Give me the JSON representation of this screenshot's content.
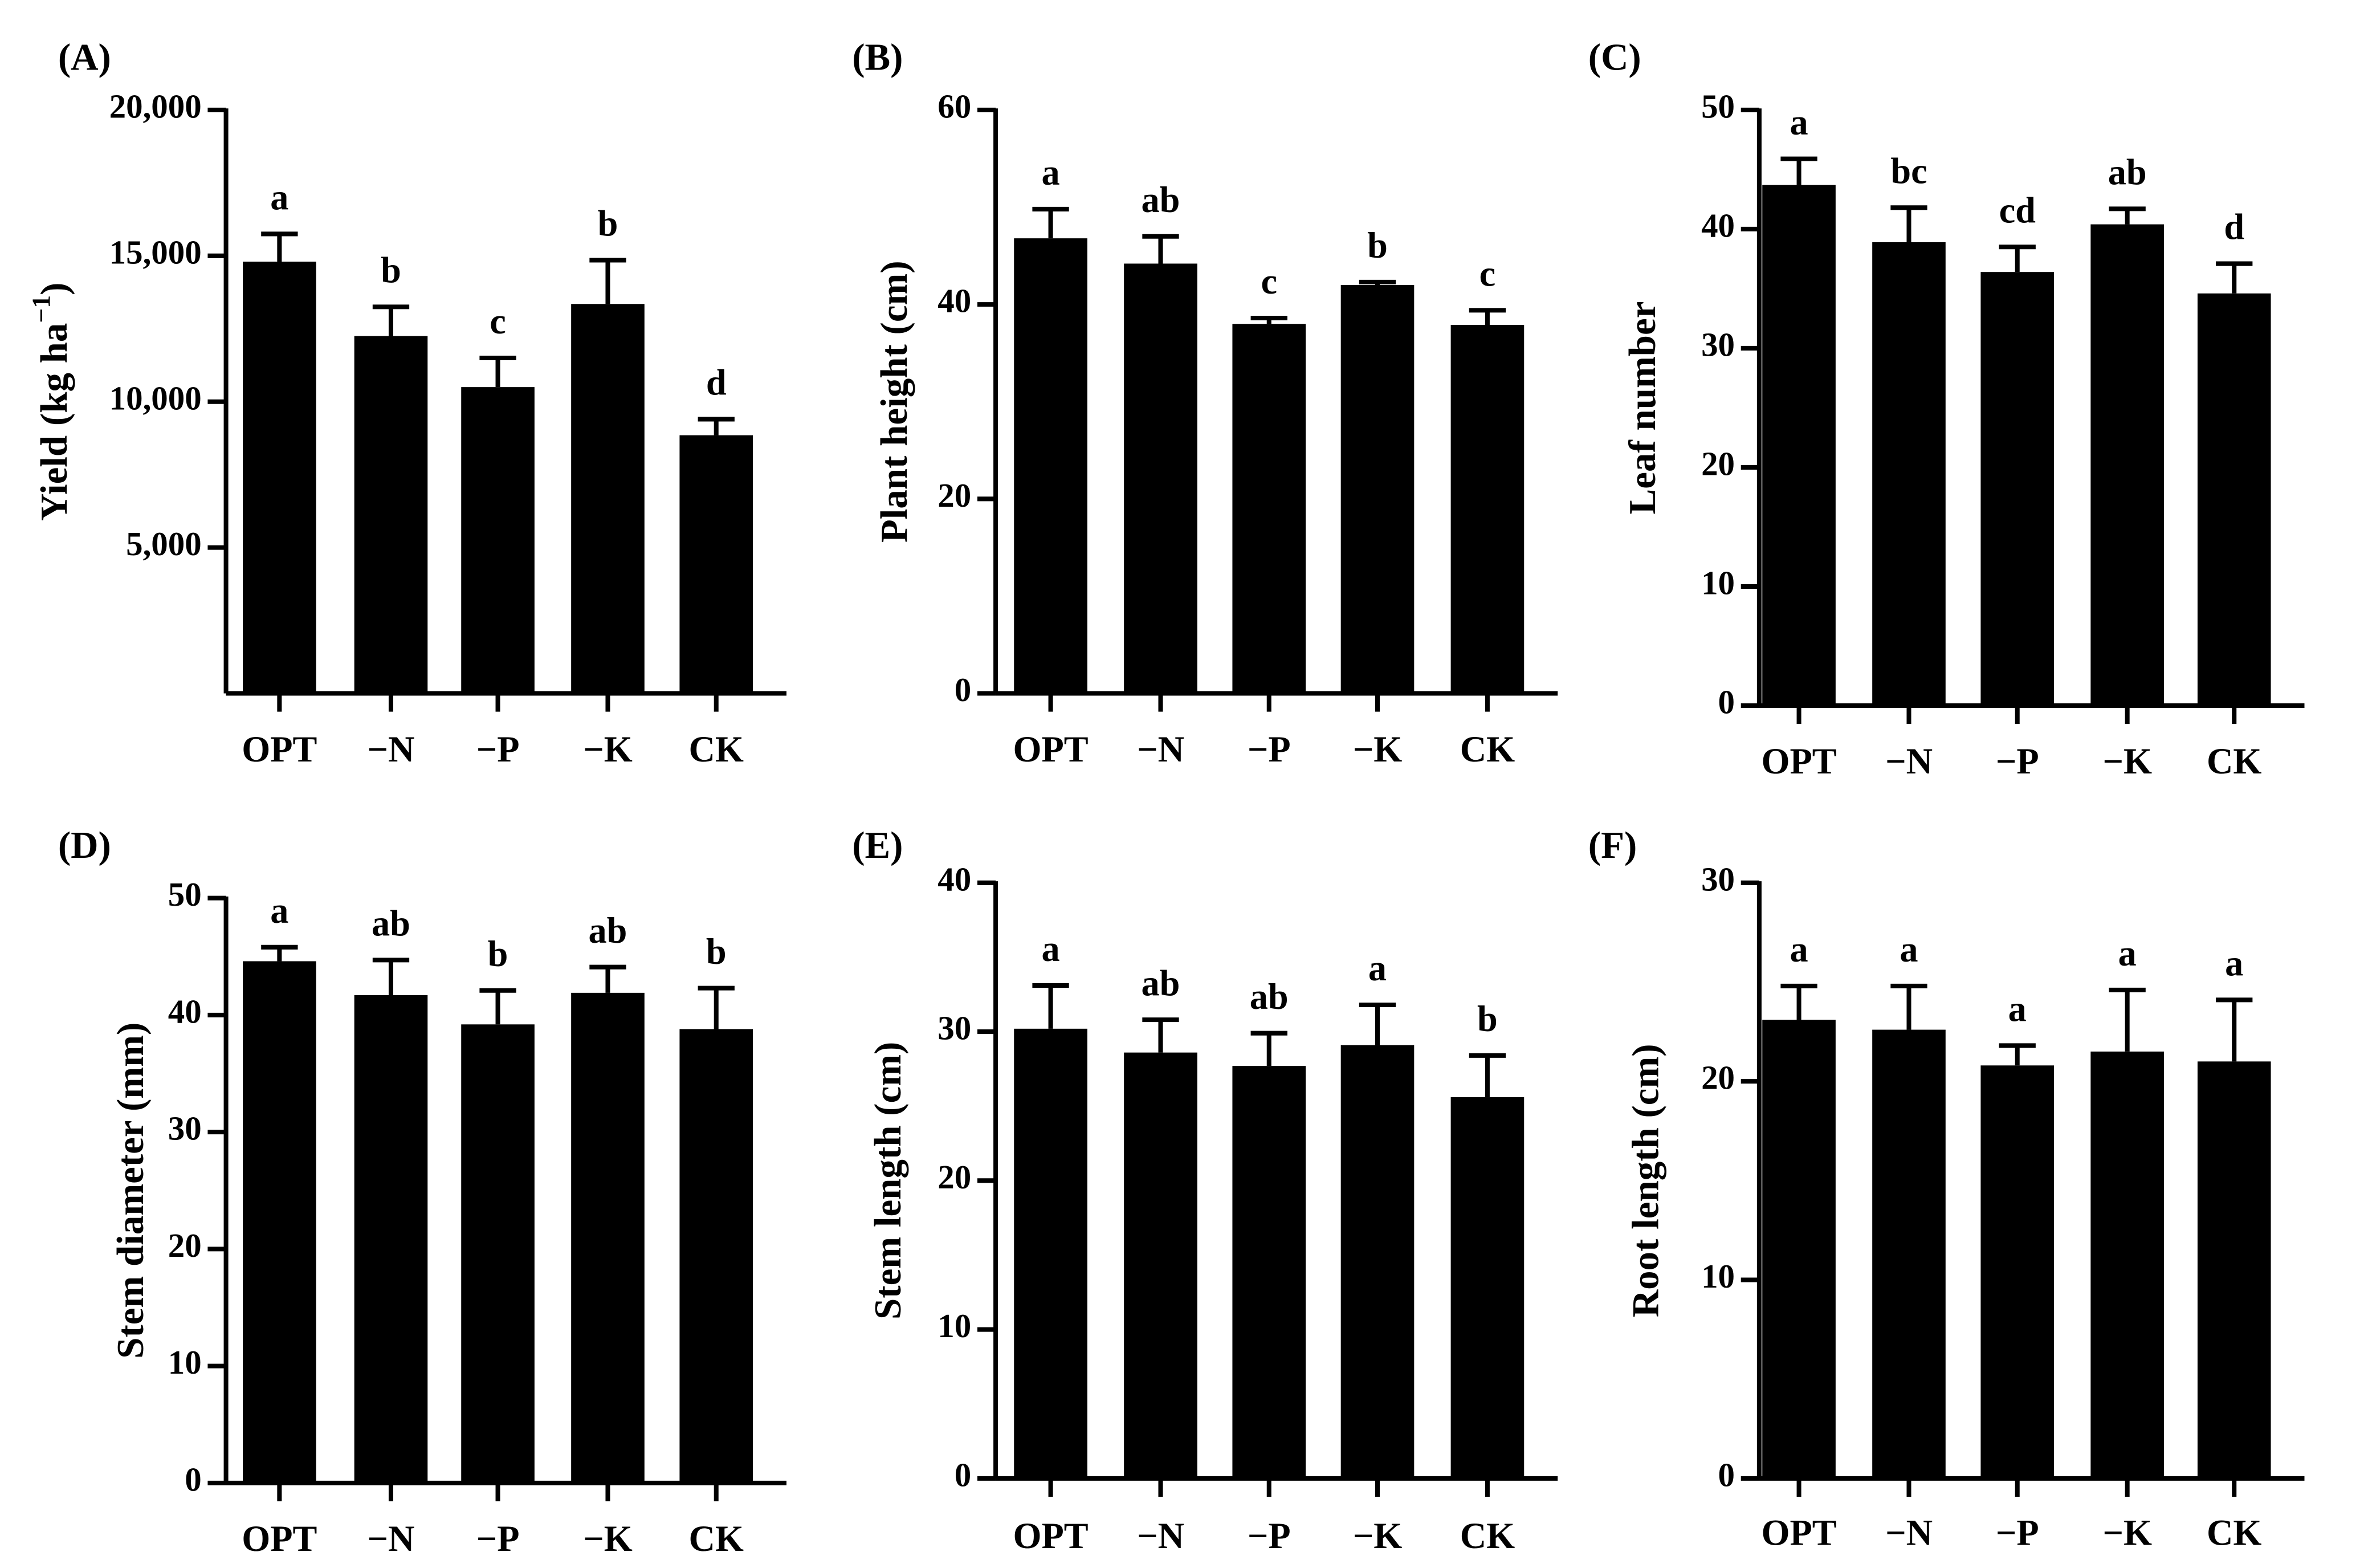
{
  "chart_data": [
    {
      "panel": "(A)",
      "type": "bar",
      "categories": [
        "OPT",
        "−N",
        "−P",
        "−K",
        "CK"
      ],
      "values": [
        14800,
        12250,
        10500,
        13350,
        8850
      ],
      "errors": [
        950,
        1000,
        1000,
        1500,
        550
      ],
      "letters": [
        "a",
        "b",
        "c",
        "b",
        "d"
      ],
      "ylabel": "Yield (kg ha",
      "ylabel_sup": "−1",
      "ylabel_suffix": ")",
      "ylim": [
        0,
        20000
      ],
      "yticks": [
        5000,
        10000,
        15000,
        20000
      ],
      "ytick_labels": [
        "5,000",
        "10,000",
        "15,000",
        "20,000"
      ],
      "color": "#000000"
    },
    {
      "panel": "(B)",
      "type": "bar",
      "categories": [
        "OPT",
        "−N",
        "−P",
        "−K",
        "CK"
      ],
      "values": [
        46.8,
        44.2,
        38.0,
        42.0,
        37.9
      ],
      "errors": [
        3.0,
        2.8,
        0.6,
        0.3,
        1.5
      ],
      "letters": [
        "a",
        "ab",
        "c",
        "b",
        "c"
      ],
      "ylabel": "Plant height (cm)",
      "ylim": [
        0,
        60
      ],
      "yticks": [
        0,
        20,
        40,
        60
      ],
      "ytick_labels": [
        "0",
        "20",
        "40",
        "60"
      ],
      "color": "#000000"
    },
    {
      "panel": "(C)",
      "type": "bar",
      "categories": [
        "OPT",
        "−N",
        "−P",
        "−K",
        "CK"
      ],
      "values": [
        43.7,
        38.9,
        36.4,
        40.4,
        34.6
      ],
      "errors": [
        2.2,
        2.9,
        2.1,
        1.3,
        2.5
      ],
      "letters": [
        "a",
        "bc",
        "cd",
        "ab",
        "d"
      ],
      "ylabel": "Leaf number",
      "ylim": [
        0,
        50
      ],
      "yticks": [
        0,
        10,
        20,
        30,
        40,
        50
      ],
      "ytick_labels": [
        "0",
        "10",
        "20",
        "30",
        "40",
        "50"
      ],
      "color": "#000000"
    },
    {
      "panel": "(D)",
      "type": "bar",
      "categories": [
        "OPT",
        "−N",
        "−P",
        "−K",
        "CK"
      ],
      "values": [
        44.6,
        41.7,
        39.2,
        41.9,
        38.8
      ],
      "errors": [
        1.2,
        3.0,
        2.9,
        2.2,
        3.5
      ],
      "letters": [
        "a",
        "ab",
        "b",
        "ab",
        "b"
      ],
      "ylabel": "Stem diameter (mm)",
      "ylim": [
        0,
        50
      ],
      "yticks": [
        0,
        10,
        20,
        30,
        40,
        50
      ],
      "ytick_labels": [
        "0",
        "10",
        "20",
        "30",
        "40",
        "50"
      ],
      "color": "#000000"
    },
    {
      "panel": "(E)",
      "type": "bar",
      "categories": [
        "OPT",
        "−N",
        "−P",
        "−K",
        "CK"
      ],
      "values": [
        30.2,
        28.6,
        27.7,
        29.1,
        25.6
      ],
      "errors": [
        2.9,
        2.2,
        2.2,
        2.7,
        2.8
      ],
      "letters": [
        "a",
        "ab",
        "ab",
        "a",
        "b"
      ],
      "ylabel": "Stem length (cm)",
      "ylim": [
        0,
        40
      ],
      "yticks": [
        0,
        10,
        20,
        30,
        40
      ],
      "ytick_labels": [
        "0",
        "10",
        "20",
        "30",
        "40"
      ],
      "color": "#000000"
    },
    {
      "panel": "(F)",
      "type": "bar",
      "categories": [
        "OPT",
        "−N",
        "−P",
        "−K",
        "CK"
      ],
      "values": [
        23.1,
        22.6,
        20.8,
        21.5,
        21.0
      ],
      "errors": [
        1.7,
        2.2,
        1.0,
        3.1,
        3.1
      ],
      "letters": [
        "a",
        "a",
        "a",
        "a",
        "a"
      ],
      "ylabel": "Root length (cm)",
      "ylim": [
        0,
        30
      ],
      "yticks": [
        0,
        10,
        20,
        30
      ],
      "ytick_labels": [
        "0",
        "10",
        "20",
        "30"
      ],
      "color": "#000000"
    }
  ]
}
